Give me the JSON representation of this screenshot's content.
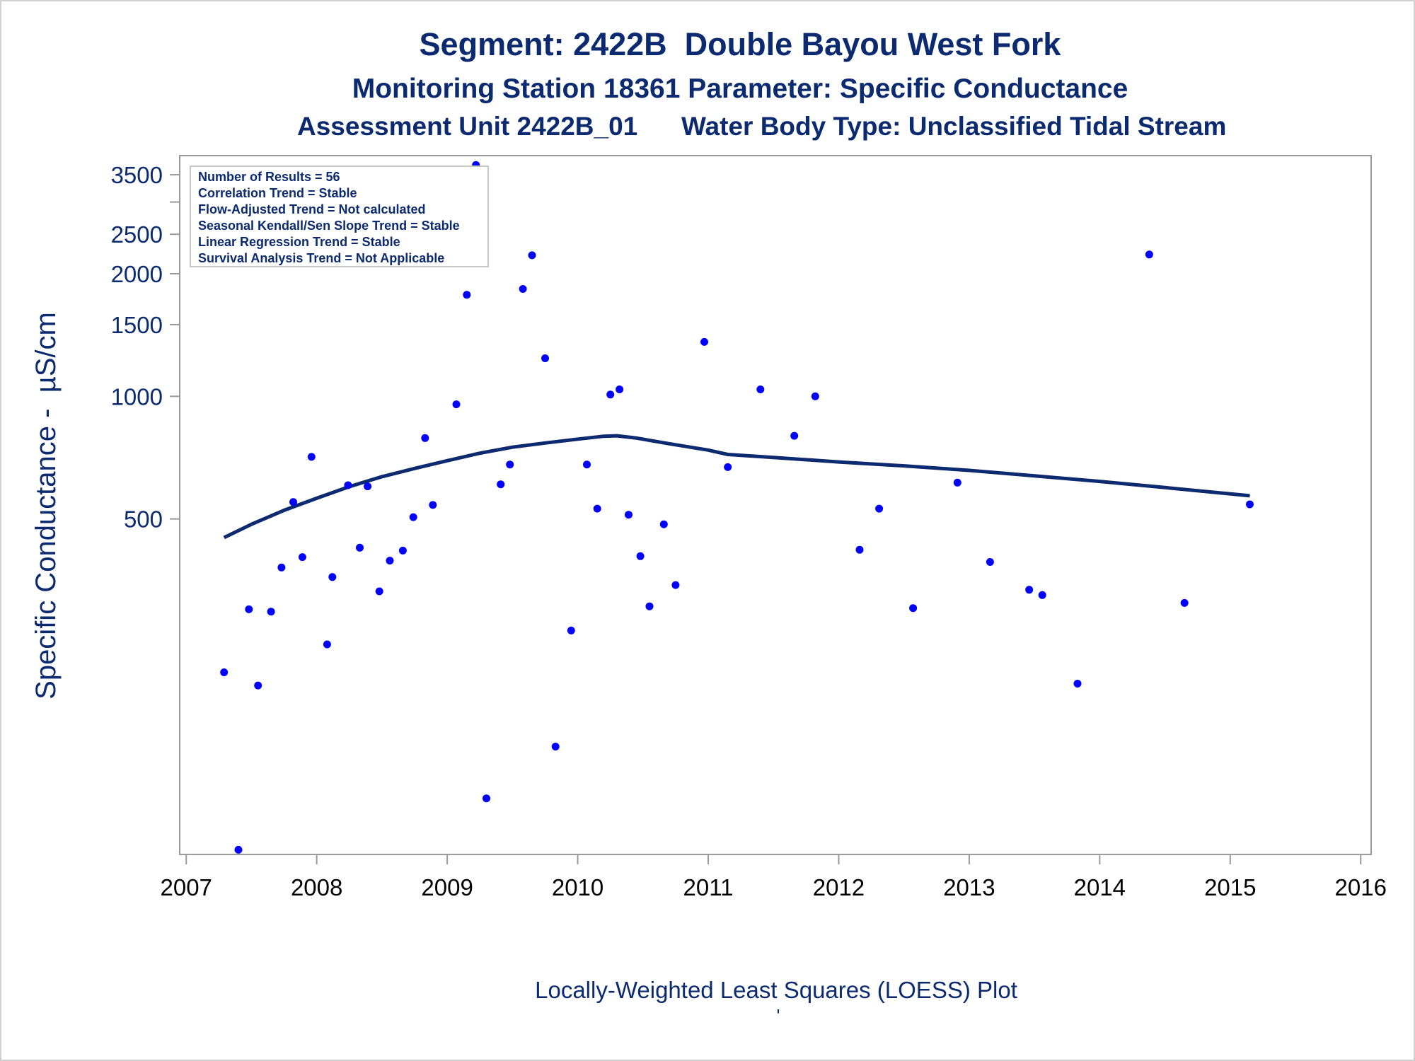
{
  "chart_data": {
    "type": "scatter",
    "title": "Segment: 2422B  Double Bayou West Fork",
    "subtitle": "Monitoring Station 18361 Parameter: Specific Conductance",
    "subtitle2_left": "Assessment Unit 2422B_01",
    "subtitle2_right": "Water Body Type: Unclassified Tidal Stream",
    "xlabel": "Locally-Weighted Least Squares (LOESS) Plot",
    "ylabel": "Specific Conductance -  µS/cm",
    "footnote_mark": "'",
    "y_scale": "log",
    "xlim": [
      2006.95,
      2016.08
    ],
    "ylim": [
      75,
      3900
    ],
    "x_ticks": [
      2007,
      2008,
      2009,
      2010,
      2011,
      2012,
      2013,
      2014,
      2015,
      2016
    ],
    "y_ticks": [
      500,
      1000,
      1500,
      2000,
      2500,
      3500
    ],
    "y_minor_ticks": [
      3000
    ],
    "colors": {
      "title": "#0b2a6f",
      "points": "#0000ff",
      "loess": "#0b2a6f",
      "frame": "#9a9a9a"
    },
    "legend": {
      "placement": "top-left",
      "lines": [
        "Number of Results = 56",
        "Correlation Trend = Stable",
        "Flow-Adjusted Trend = Not calculated",
        "Seasonal Kendall/Sen Slope Trend = Stable",
        "Linear Regression Trend = Stable",
        "Survival Analysis Trend = Not Applicable"
      ]
    },
    "points": [
      {
        "x": 2007.29,
        "y": 210
      },
      {
        "x": 2007.4,
        "y": 77
      },
      {
        "x": 2007.48,
        "y": 300
      },
      {
        "x": 2007.55,
        "y": 195
      },
      {
        "x": 2007.65,
        "y": 296
      },
      {
        "x": 2007.73,
        "y": 380
      },
      {
        "x": 2007.82,
        "y": 550
      },
      {
        "x": 2007.89,
        "y": 403
      },
      {
        "x": 2007.96,
        "y": 710
      },
      {
        "x": 2008.08,
        "y": 246
      },
      {
        "x": 2008.12,
        "y": 360
      },
      {
        "x": 2008.24,
        "y": 605
      },
      {
        "x": 2008.33,
        "y": 425
      },
      {
        "x": 2008.39,
        "y": 601
      },
      {
        "x": 2008.48,
        "y": 332
      },
      {
        "x": 2008.56,
        "y": 395
      },
      {
        "x": 2008.66,
        "y": 418
      },
      {
        "x": 2008.74,
        "y": 505
      },
      {
        "x": 2008.83,
        "y": 790
      },
      {
        "x": 2008.89,
        "y": 541
      },
      {
        "x": 2009.07,
        "y": 956
      },
      {
        "x": 2009.15,
        "y": 1775
      },
      {
        "x": 2009.22,
        "y": 3700
      },
      {
        "x": 2009.3,
        "y": 103
      },
      {
        "x": 2009.41,
        "y": 608
      },
      {
        "x": 2009.48,
        "y": 680
      },
      {
        "x": 2009.58,
        "y": 1835
      },
      {
        "x": 2009.65,
        "y": 2220
      },
      {
        "x": 2009.75,
        "y": 1240
      },
      {
        "x": 2009.83,
        "y": 138
      },
      {
        "x": 2009.95,
        "y": 266
      },
      {
        "x": 2010.07,
        "y": 680
      },
      {
        "x": 2010.15,
        "y": 530
      },
      {
        "x": 2010.25,
        "y": 1010
      },
      {
        "x": 2010.32,
        "y": 1040
      },
      {
        "x": 2010.39,
        "y": 512
      },
      {
        "x": 2010.48,
        "y": 405
      },
      {
        "x": 2010.55,
        "y": 305
      },
      {
        "x": 2010.66,
        "y": 485
      },
      {
        "x": 2010.75,
        "y": 344
      },
      {
        "x": 2010.97,
        "y": 1360
      },
      {
        "x": 2011.15,
        "y": 670
      },
      {
        "x": 2011.4,
        "y": 1040
      },
      {
        "x": 2011.66,
        "y": 800
      },
      {
        "x": 2011.82,
        "y": 1000
      },
      {
        "x": 2012.16,
        "y": 420
      },
      {
        "x": 2012.31,
        "y": 530
      },
      {
        "x": 2012.57,
        "y": 302
      },
      {
        "x": 2012.91,
        "y": 614
      },
      {
        "x": 2013.16,
        "y": 392
      },
      {
        "x": 2013.46,
        "y": 335
      },
      {
        "x": 2013.56,
        "y": 325
      },
      {
        "x": 2013.83,
        "y": 197
      },
      {
        "x": 2014.38,
        "y": 2230
      },
      {
        "x": 2014.65,
        "y": 311
      },
      {
        "x": 2015.15,
        "y": 543
      }
    ],
    "loess_series": {
      "x": [
        2007.29,
        2007.5,
        2007.75,
        2008.0,
        2008.25,
        2008.5,
        2008.75,
        2009.0,
        2009.25,
        2009.5,
        2009.75,
        2010.0,
        2010.2,
        2010.3,
        2010.45,
        2010.7,
        2011.0,
        2011.15,
        2011.5,
        2012.0,
        2012.5,
        2013.0,
        2013.5,
        2014.0,
        2014.5,
        2015.15
      ],
      "y": [
        450,
        485,
        525,
        562,
        600,
        635,
        665,
        695,
        725,
        750,
        768,
        785,
        798,
        800,
        790,
        765,
        738,
        720,
        708,
        690,
        675,
        658,
        638,
        618,
        597,
        570
      ]
    }
  }
}
